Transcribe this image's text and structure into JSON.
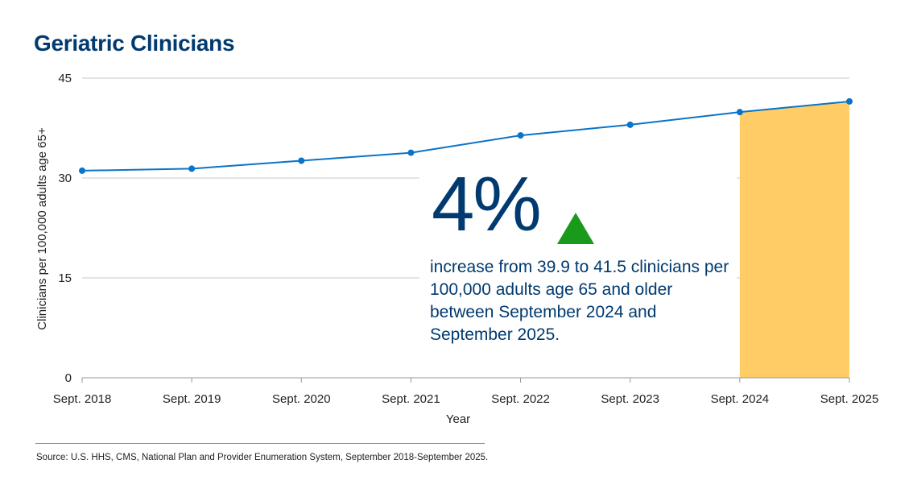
{
  "title": "Geriatric Clinicians",
  "chart_data": {
    "type": "line",
    "categories": [
      "Sept. 2018",
      "Sept. 2019",
      "Sept. 2020",
      "Sept. 2021",
      "Sept. 2022",
      "Sept. 2023",
      "Sept. 2024",
      "Sept. 2025"
    ],
    "series": [
      {
        "values": [
          31.1,
          31.4,
          32.6,
          33.8,
          36.4,
          38.0,
          39.9,
          41.5
        ]
      }
    ],
    "highlight": {
      "from": "Sept. 2024",
      "to": "Sept. 2025",
      "color": "#ffcc66"
    },
    "xlabel": "Year",
    "ylabel": "Clinicians per 100,000 adults age 65+",
    "ylim": [
      0,
      45
    ],
    "yticks": [
      0,
      15,
      30,
      45
    ],
    "grid": true,
    "line_color": "#0a74c8"
  },
  "callout": {
    "stat": "4%",
    "direction_icon": "up-triangle-icon",
    "direction_color": "#1a9a1a",
    "text": "increase from 39.9 to 41.5 clinicians per 100,000 adults age 65 and older between September 2024 and September 2025."
  },
  "source": "Source: U.S. HHS, CMS, National Plan and Provider Enumeration System, September 2018-September 2025."
}
